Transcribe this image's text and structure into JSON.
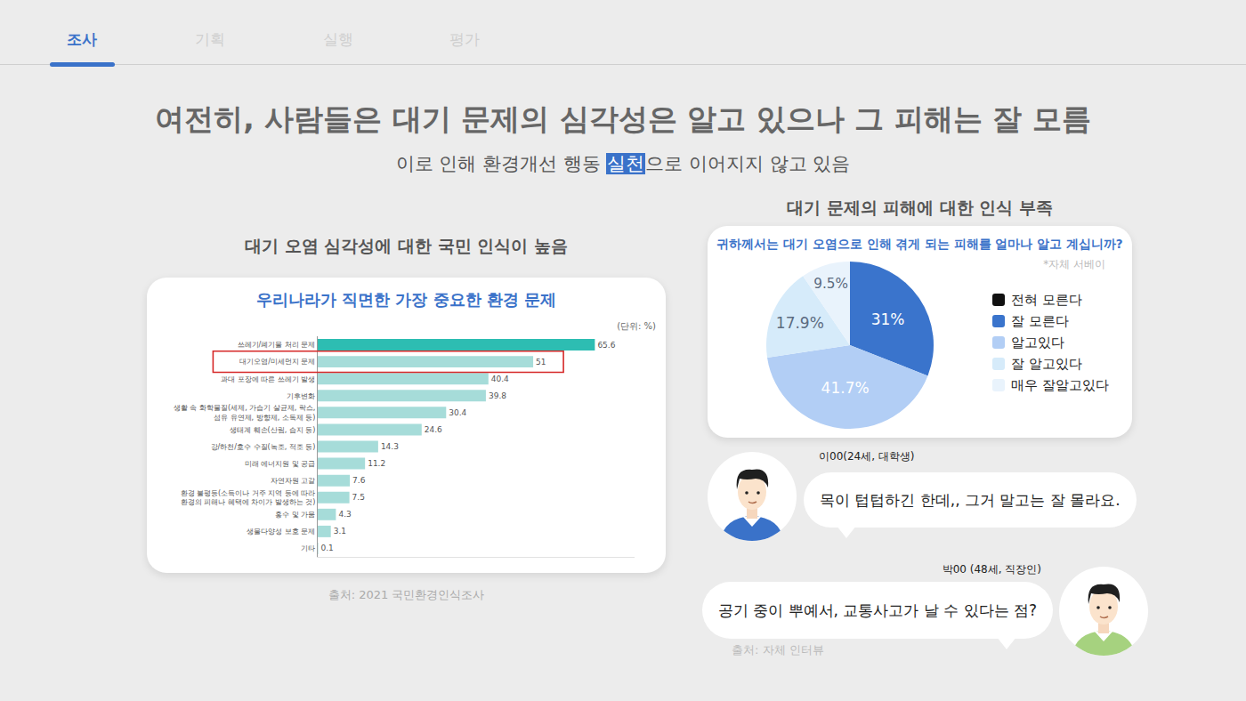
{
  "tabs": [
    "조사",
    "기획",
    "실행",
    "평가"
  ],
  "active_tab": "조사",
  "headline": "여전히, 사람들은 대기 문제의 심각성은 알고 있으나 그 피해는 잘 모름",
  "subtitle": {
    "before": "이로 인해 환경개선 행동 ",
    "highlight": "실천",
    "after": "으로 이어지지 않고 있음"
  },
  "left_panel": {
    "heading": "대기 오염 심각성에 대한 국민 인식이 높음",
    "source": "출처:  2021 국민환경인식조사"
  },
  "right_panel": {
    "heading": "대기 문제의 피해에 대한 인식 부족"
  },
  "interviews": [
    {
      "name": "이00(24세, 대학생)",
      "quote": "목이 텁텁하긴 한데,, 그거 말고는 잘 몰라요."
    },
    {
      "name": "박00 (48세, 직장인)",
      "quote": "공기 중이 뿌예서, 교통사고가 날 수 있다는 점?"
    }
  ],
  "interview_source": "출처: 자체 인터뷰",
  "chart_data": [
    {
      "type": "bar",
      "title": "우리나라가 직면한 가장 중요한 환경 문제",
      "annotations": [
        "(단위: %)"
      ],
      "orientation": "horizontal",
      "categories": [
        "쓰레기/폐기물 처리 문제",
        "대기오염/미세먼지 문제",
        "과대 포장에 따른 쓰레기 발생",
        "기후변화",
        "생활 속 화학물질(세제, 가습기 살균제, 락스, 섬유 유연제, 방향제, 소독제 등)",
        "생태계 훼손(산림, 습지 등)",
        "강/하천/호수 수질(녹조, 적조 등)",
        "미래 에너지원 및 공급",
        "자연자원 고갈",
        "환경 불평등(소득이나 거주 지역 등에 따라 환경의 피해나 혜택에 차이가 발생하는 것)",
        "홍수 및 가뭄",
        "생물다양성 보호 문제",
        "기타"
      ],
      "values": [
        65.6,
        51,
        40.4,
        39.8,
        30.4,
        24.6,
        14.3,
        11.2,
        7.6,
        7.5,
        4.3,
        3.1,
        0.1
      ],
      "colors": [
        "#2dbdb2",
        "#a6dcd9",
        "#a6dcd9",
        "#a6dcd9",
        "#a6dcd9",
        "#a6dcd9",
        "#a6dcd9",
        "#a6dcd9",
        "#a6dcd9",
        "#a6dcd9",
        "#a6dcd9",
        "#a6dcd9",
        "#a6dcd9"
      ],
      "xlim": [
        0,
        75
      ],
      "data_labels": true,
      "tick_labels": "y",
      "highlight": "대기오염/미세먼지 문제"
    },
    {
      "type": "pie",
      "title": "귀하께서는 대기 오염으로 인해 겪게 되는 피해를 얼마나 알고 계십니까?",
      "subtitle": "*자체 서베이",
      "categories": [
        "전혀 모른다",
        "잘 모른다",
        "알고있다",
        "잘 알고있다",
        "매우 잘알고있다"
      ],
      "values": [
        0,
        31,
        41.7,
        17.9,
        9.5
      ],
      "value_labels": [
        null,
        "31%",
        "41.7%",
        "17.9%",
        "9.5%"
      ],
      "colors": [
        "#111111",
        "#3a74cc",
        "#b2cef5",
        "#d6ebfa",
        "#e9f3fc"
      ],
      "data_labels": true,
      "legend": "right"
    }
  ]
}
